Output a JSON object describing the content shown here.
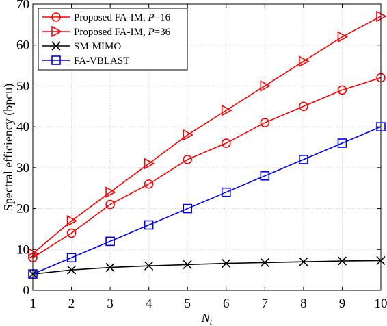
{
  "chart_data": {
    "type": "line",
    "xlabel_base": "N",
    "xlabel_sub": "t",
    "ylabel": "Spectral efficiency (bpcu)",
    "x": [
      1,
      2,
      3,
      4,
      5,
      6,
      7,
      8,
      9,
      10
    ],
    "xlim": [
      1,
      10
    ],
    "ylim": [
      0,
      70
    ],
    "xticks": [
      "1",
      "2",
      "3",
      "4",
      "5",
      "6",
      "7",
      "8",
      "9",
      "10"
    ],
    "yticks": [
      "0",
      "10",
      "20",
      "30",
      "40",
      "50",
      "60",
      "70"
    ],
    "grid": true,
    "legend_position": "top-left",
    "series": [
      {
        "name": "Proposed FA-IM, P=16",
        "legend_prefix": "Proposed FA-IM, ",
        "legend_var": "P",
        "legend_suffix": "=16",
        "marker": "circle",
        "color": "#ff0000",
        "values": [
          8,
          14,
          21,
          26,
          32,
          36,
          41,
          45,
          49,
          52
        ]
      },
      {
        "name": "Proposed FA-IM, P=36",
        "legend_prefix": "Proposed FA-IM, ",
        "legend_var": "P",
        "legend_suffix": "=36",
        "marker": "triangle-right",
        "color": "#ff0000",
        "values": [
          9,
          17,
          24,
          31,
          38,
          44,
          50,
          56,
          62,
          67
        ]
      },
      {
        "name": "SM-MIMO",
        "legend_prefix": "SM-MIMO",
        "legend_var": "",
        "legend_suffix": "",
        "marker": "x",
        "color": "#000000",
        "values": [
          4,
          5,
          5.6,
          6,
          6.3,
          6.6,
          6.8,
          7,
          7.2,
          7.3
        ]
      },
      {
        "name": "FA-VBLAST",
        "legend_prefix": "FA-VBLAST",
        "legend_var": "",
        "legend_suffix": "",
        "marker": "square",
        "color": "#0000ff",
        "values": [
          4,
          8,
          12,
          16,
          20,
          24,
          28,
          32,
          36,
          40
        ]
      }
    ]
  }
}
